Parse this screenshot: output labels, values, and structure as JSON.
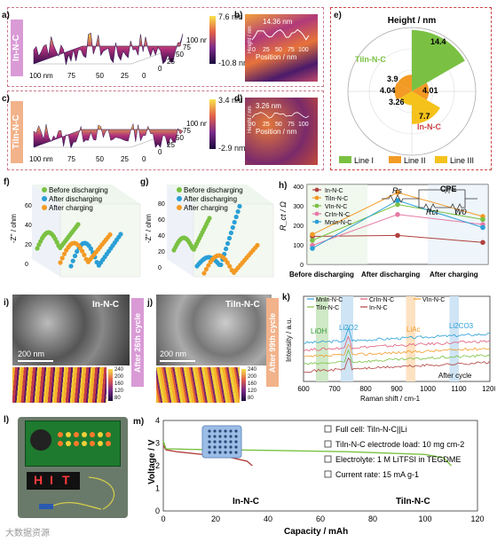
{
  "panels": {
    "a": {
      "letter": "a)",
      "side_label": "In-N-C",
      "zmax": "7.6 nm",
      "zmin": "-10.8 nm",
      "axis": [
        "100 nm",
        "75",
        "50",
        "25",
        "0"
      ],
      "axis_y": [
        "0",
        "25",
        "50",
        "75",
        "100 nm"
      ]
    },
    "b": {
      "letter": "b)",
      "measure": "14.36 nm",
      "xlabel": "Position / nm",
      "ylabel": "Height / nm",
      "ticks": [
        "0",
        "25",
        "50",
        "75",
        "100"
      ]
    },
    "c": {
      "letter": "c)",
      "side_label": "TiIn-N-C",
      "zmax": "3.4 nm",
      "zmin": "-2.9 nm",
      "axis": [
        "100 nm",
        "75",
        "50",
        "25",
        "0"
      ],
      "axis_y": [
        "0",
        "25",
        "50",
        "75",
        "100 nm"
      ]
    },
    "d": {
      "letter": "d)",
      "measure": "3.26 nm",
      "xlabel": "Position / nm",
      "ylabel": "Height / nm",
      "ticks": [
        "0",
        "25",
        "50",
        "75",
        "100"
      ]
    },
    "e": {
      "letter": "e)",
      "title": "Height / nm",
      "label_tin": "TiIn-N-C",
      "label_in": "In-N-C",
      "values": [
        "14.4",
        "3.9",
        "4.04",
        "4.01",
        "3.26",
        "7.7"
      ],
      "legend": [
        "Line I",
        "Line II",
        "Line III"
      ]
    },
    "f": {
      "letter": "f)",
      "ylabel": "-Z'' / ohm",
      "legend": [
        "Before discharging",
        "After discharging",
        "After charging"
      ],
      "ticks": [
        "0",
        "20",
        "40",
        "60"
      ]
    },
    "g": {
      "letter": "g)",
      "ylabel": "-Z'' / ohm",
      "legend": [
        "Before discharging",
        "After discharging",
        "After charging"
      ],
      "ticks": [
        "0",
        "20",
        "40",
        "60",
        "80"
      ]
    },
    "h": {
      "letter": "h)",
      "ylabel": "R_ct / Ω",
      "legend": [
        "In-N-C",
        "TiIn-N-C",
        "VIn-N-C",
        "CrIn-N-C",
        "MnIn-N-C"
      ],
      "circuit": {
        "rs": "Rs",
        "cpe": "CPE",
        "rct": "Rct",
        "wo": "W0"
      },
      "categories": [
        "Before discharging",
        "After discharging",
        "After charging"
      ],
      "yticks": [
        "0",
        "100",
        "200",
        "300",
        "400"
      ]
    },
    "i": {
      "letter": "i)",
      "label": "In-N-C",
      "scale": "200 nm",
      "side": "After 26th cycle",
      "cbar": [
        "240",
        "200",
        "160",
        "120",
        "80"
      ]
    },
    "j": {
      "letter": "j)",
      "label": "TiIn-N-C",
      "scale": "200 nm",
      "side": "After 99th cycle",
      "cbar": [
        "240",
        "200",
        "160",
        "120",
        "80"
      ]
    },
    "k": {
      "letter": "k)",
      "legend": [
        "MnIn-N-C",
        "CrIn-N-C",
        "VIn-N-C",
        "TiIn-N-C",
        "In-N-C"
      ],
      "peaks": [
        "LiOH",
        "Li2O2",
        "LiAc",
        "Li2CO3"
      ],
      "note": "After cycle",
      "xlabel": "Raman shift / cm-1",
      "ylabel": "Intensity / a.u.",
      "xticks": [
        "600",
        "700",
        "800",
        "900",
        "1000",
        "1100",
        "1200"
      ]
    },
    "l": {
      "letter": "l)",
      "display": [
        "H",
        "I",
        "T"
      ]
    },
    "m": {
      "letter": "m)",
      "ylabel": "Voltage / V",
      "xlabel": "Capacity / mAh",
      "xticks": [
        "0",
        "20",
        "40",
        "60",
        "80",
        "100",
        "120"
      ],
      "yticks": [
        "0",
        "1",
        "2",
        "3",
        "4"
      ],
      "curve_in": "In-N-C",
      "curve_tin": "TiIn-N-C",
      "notes": [
        "Full cell: TiIn-N-C||Li",
        "TiIn-N-C electrode load: 10 mg cm-2",
        "Electrolyte: 1 M LiTFSI in TEGDME",
        "Current rate: 15 mA g-1"
      ]
    }
  },
  "watermark": "大数据资源",
  "colors": {
    "green": "#7ac143",
    "orange": "#f39a25",
    "blue": "#2a9fd6",
    "red": "#b0413e",
    "yellow": "#f5c21b",
    "pink": "#d99ad6",
    "salmon": "#f2b28a"
  }
}
